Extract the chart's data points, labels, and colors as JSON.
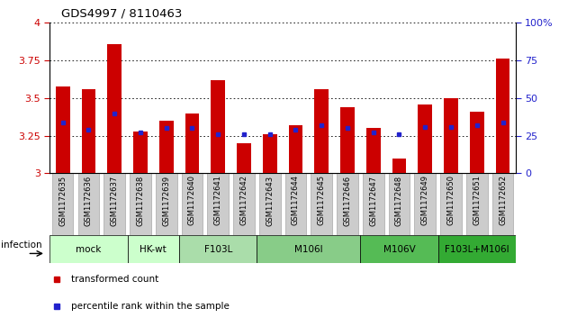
{
  "title": "GDS4997 / 8110463",
  "samples": [
    "GSM1172635",
    "GSM1172636",
    "GSM1172637",
    "GSM1172638",
    "GSM1172639",
    "GSM1172640",
    "GSM1172641",
    "GSM1172642",
    "GSM1172643",
    "GSM1172644",
    "GSM1172645",
    "GSM1172646",
    "GSM1172647",
    "GSM1172648",
    "GSM1172649",
    "GSM1172650",
    "GSM1172651",
    "GSM1172652"
  ],
  "bar_heights": [
    3.58,
    3.56,
    3.86,
    3.28,
    3.35,
    3.4,
    3.62,
    3.2,
    3.26,
    3.32,
    3.56,
    3.44,
    3.3,
    3.1,
    3.46,
    3.5,
    3.41,
    3.76
  ],
  "blue_positions": [
    3.34,
    3.29,
    3.4,
    3.27,
    3.3,
    3.3,
    3.26,
    3.26,
    3.26,
    3.29,
    3.32,
    3.3,
    3.27,
    3.26,
    3.31,
    3.31,
    3.32,
    3.34
  ],
  "ylim": [
    3.0,
    4.0
  ],
  "yticks": [
    3.0,
    3.25,
    3.5,
    3.75,
    4.0
  ],
  "ytick_labels": [
    "3",
    "3.25",
    "3.5",
    "3.75",
    "4"
  ],
  "right_yticks": [
    0,
    25,
    50,
    75,
    100
  ],
  "right_ytick_labels": [
    "0",
    "25",
    "50",
    "75",
    "100%"
  ],
  "bar_color": "#CC0000",
  "blue_color": "#2222CC",
  "groups": [
    {
      "label": "mock",
      "start": 0,
      "end": 2,
      "color": "#ccffcc"
    },
    {
      "label": "HK-wt",
      "start": 3,
      "end": 4,
      "color": "#ccffcc"
    },
    {
      "label": "F103L",
      "start": 5,
      "end": 7,
      "color": "#aaddaa"
    },
    {
      "label": "M106I",
      "start": 8,
      "end": 11,
      "color": "#88cc88"
    },
    {
      "label": "M106V",
      "start": 12,
      "end": 14,
      "color": "#55bb55"
    },
    {
      "label": "F103L+M106I",
      "start": 15,
      "end": 17,
      "color": "#33aa33"
    }
  ],
  "infection_label": "infection",
  "legend_bar_label": "transformed count",
  "legend_dot_label": "percentile rank within the sample",
  "tick_color_left": "#CC0000",
  "tick_color_right": "#2222CC",
  "xtick_bg_color": "#cccccc",
  "xtick_border_color": "#999999"
}
